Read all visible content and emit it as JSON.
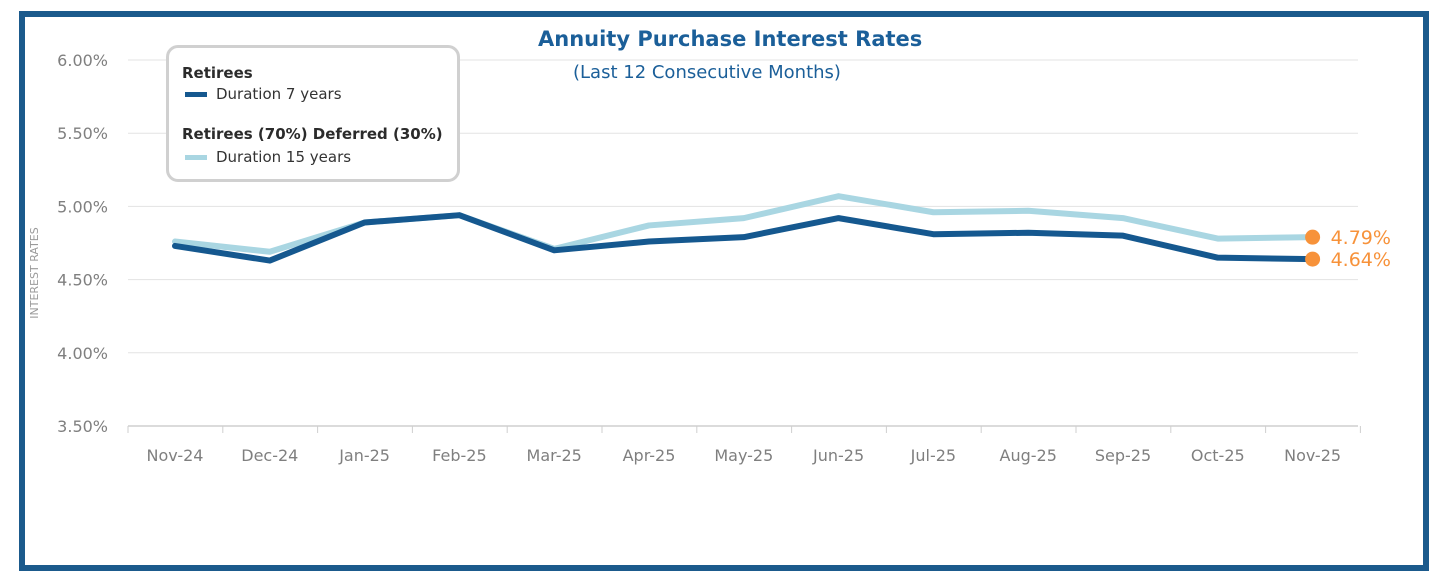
{
  "chart_data": {
    "type": "line",
    "title": "Annuity Purchase Interest Rates",
    "subtitle": "(Last 12 Consecutive Months)",
    "ylabel": "INTEREST RATES",
    "xlabel": "",
    "categories": [
      "Nov-24",
      "Dec-24",
      "Jan-25",
      "Feb-25",
      "Mar-25",
      "Apr-25",
      "May-25",
      "Jun-25",
      "Jul-25",
      "Aug-25",
      "Sep-25",
      "Oct-25",
      "Nov-25"
    ],
    "ylim": [
      3.5,
      6.0
    ],
    "yticks": [
      3.5,
      4.0,
      4.5,
      5.0,
      5.5,
      6.0
    ],
    "ytick_labels": [
      "3.50%",
      "4.00%",
      "4.50%",
      "5.00%",
      "5.50%",
      "6.00%"
    ],
    "grid": true,
    "legend_position": "top-left",
    "series": [
      {
        "name": "Duration 7 years",
        "group": "Retirees",
        "color": "#15588f",
        "values": [
          4.73,
          4.63,
          4.89,
          4.94,
          4.7,
          4.76,
          4.79,
          4.92,
          4.81,
          4.82,
          4.8,
          4.65,
          4.64
        ],
        "end_label": "4.64%"
      },
      {
        "name": "Duration 15 years",
        "group": "Retirees (70%) Deferred (30%)",
        "color": "#a9d6e2",
        "values": [
          4.76,
          4.69,
          4.89,
          4.94,
          4.71,
          4.87,
          4.92,
          5.07,
          4.96,
          4.97,
          4.92,
          4.78,
          4.79
        ],
        "end_label": "4.79%"
      }
    ],
    "marker_color": "#f7923a"
  },
  "legend": {
    "group1_heading": "Retirees",
    "group1_item": "Duration 7 years",
    "group2_heading": "Retirees (70%) Deferred (30%)",
    "group2_item": "Duration 15 years"
  },
  "colors": {
    "frame": "#1b5a8c",
    "title": "#1b5f99",
    "grid": "#e3e3e3",
    "axis_text": "#7f7f7f"
  }
}
